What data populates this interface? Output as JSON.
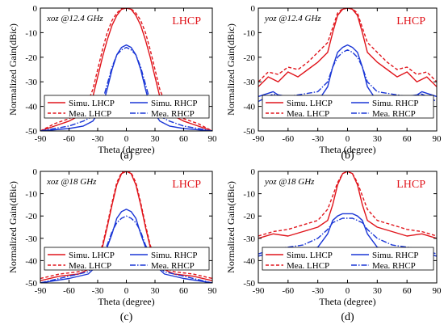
{
  "chart_data": [
    {
      "type": "line",
      "caption": "(a)",
      "annotation": "xoz @12.4 GHz",
      "polarization_label": "LHCP",
      "xlabel": "Theta (degree)",
      "ylabel": "Normalized Gain(dBic)",
      "xlim": [
        -90,
        90
      ],
      "ylim": [
        -50,
        0
      ],
      "xticks": [
        -90,
        -60,
        -30,
        0,
        30,
        60,
        90
      ],
      "yticks": [
        -50,
        -40,
        -30,
        -20,
        -10,
        0
      ],
      "grid": false,
      "legend_position": "bottom",
      "colors": {
        "lhcp": "#e0141b",
        "rhcp": "#1a36d6"
      },
      "series": [
        {
          "name": "Simu. LHCP",
          "style": "solid",
          "color": "#e0141b",
          "x": [
            -90,
            -75,
            -60,
            -50,
            -45,
            -40,
            -35,
            -30,
            -25,
            -20,
            -15,
            -10,
            -5,
            0,
            5,
            10,
            15,
            20,
            25,
            30,
            35,
            40,
            45,
            50,
            60,
            75,
            90
          ],
          "y": [
            -50,
            -48,
            -46,
            -44,
            -42,
            -40,
            -36,
            -28,
            -20,
            -13,
            -7,
            -3,
            -0.5,
            0,
            -0.5,
            -3,
            -7,
            -13,
            -20,
            -28,
            -36,
            -40,
            -42,
            -44,
            -46,
            -48,
            -50
          ]
        },
        {
          "name": "Simu. RHCP",
          "style": "solid",
          "color": "#1a36d6",
          "x": [
            -90,
            -60,
            -45,
            -35,
            -25,
            -20,
            -15,
            -10,
            -5,
            0,
            5,
            10,
            15,
            20,
            25,
            35,
            45,
            60,
            90
          ],
          "y": [
            -50,
            -49,
            -48,
            -46,
            -40,
            -33,
            -25,
            -19,
            -16,
            -15,
            -16,
            -19,
            -25,
            -33,
            -40,
            -46,
            -48,
            -49,
            -50
          ]
        },
        {
          "name": "Mea. LHCP",
          "style": "dashed",
          "color": "#e0141b",
          "x": [
            -90,
            -75,
            -60,
            -45,
            -40,
            -35,
            -30,
            -25,
            -20,
            -15,
            -10,
            -5,
            0,
            5,
            10,
            15,
            20,
            25,
            30,
            35,
            40,
            45,
            60,
            75,
            90
          ],
          "y": [
            -50,
            -47,
            -45,
            -42,
            -38,
            -33,
            -25,
            -17,
            -10,
            -5,
            -2,
            -0.3,
            0,
            -0.3,
            -2,
            -5,
            -10,
            -17,
            -25,
            -33,
            -38,
            -42,
            -45,
            -47,
            -50
          ]
        },
        {
          "name": "Mea. RHCP",
          "style": "dashdot",
          "color": "#1a36d6",
          "x": [
            -90,
            -60,
            -45,
            -35,
            -25,
            -20,
            -15,
            -10,
            -5,
            0,
            5,
            10,
            15,
            20,
            25,
            35,
            45,
            60,
            90
          ],
          "y": [
            -50,
            -48,
            -46,
            -44,
            -38,
            -31,
            -24,
            -19,
            -17,
            -16,
            -17,
            -19,
            -24,
            -31,
            -38,
            -44,
            -46,
            -48,
            -50
          ]
        }
      ]
    },
    {
      "type": "line",
      "caption": "(b)",
      "annotation": "yoz @12.4 GHz",
      "polarization_label": "LHCP",
      "xlabel": "Theta (degree)",
      "ylabel": "Normalized Gain(dBic)",
      "xlim": [
        -90,
        90
      ],
      "ylim": [
        -50,
        0
      ],
      "xticks": [
        -90,
        -60,
        -30,
        0,
        30,
        60,
        90
      ],
      "yticks": [
        -50,
        -40,
        -30,
        -20,
        -10,
        0
      ],
      "grid": false,
      "legend_position": "bottom",
      "colors": {
        "lhcp": "#e0141b",
        "rhcp": "#1a36d6"
      },
      "series": [
        {
          "name": "Simu. LHCP",
          "style": "solid",
          "color": "#e0141b",
          "x": [
            -90,
            -80,
            -70,
            -60,
            -50,
            -40,
            -30,
            -20,
            -15,
            -10,
            -5,
            0,
            5,
            10,
            15,
            20,
            30,
            40,
            50,
            60,
            70,
            80,
            90
          ],
          "y": [
            -32,
            -28,
            -30,
            -26,
            -28,
            -25,
            -22,
            -18,
            -10,
            -3,
            -0.5,
            0,
            -0.5,
            -3,
            -10,
            -18,
            -22,
            -25,
            -28,
            -26,
            -30,
            -28,
            -32
          ]
        },
        {
          "name": "Simu. RHCP",
          "style": "solid",
          "color": "#1a36d6",
          "x": [
            -90,
            -75,
            -60,
            -45,
            -30,
            -20,
            -15,
            -10,
            -5,
            0,
            5,
            10,
            15,
            20,
            30,
            45,
            60,
            75,
            90
          ],
          "y": [
            -36,
            -34,
            -38,
            -36,
            -38,
            -32,
            -24,
            -18,
            -16,
            -15,
            -16,
            -18,
            -24,
            -32,
            -38,
            -36,
            -38,
            -34,
            -36
          ]
        },
        {
          "name": "Mea. LHCP",
          "style": "dashed",
          "color": "#e0141b",
          "x": [
            -90,
            -80,
            -70,
            -60,
            -50,
            -40,
            -30,
            -20,
            -15,
            -10,
            -5,
            0,
            5,
            10,
            15,
            20,
            30,
            40,
            50,
            60,
            70,
            80,
            90
          ],
          "y": [
            -30,
            -26,
            -27,
            -24,
            -25,
            -22,
            -18,
            -14,
            -8,
            -2,
            -0.3,
            0,
            -0.3,
            -2,
            -8,
            -14,
            -18,
            -22,
            -25,
            -24,
            -27,
            -26,
            -30
          ]
        },
        {
          "name": "Mea. RHCP",
          "style": "dashdot",
          "color": "#1a36d6",
          "x": [
            -90,
            -75,
            -60,
            -45,
            -30,
            -20,
            -15,
            -10,
            -5,
            0,
            5,
            10,
            15,
            20,
            30,
            45,
            60,
            75,
            90
          ],
          "y": [
            -38,
            -35,
            -36,
            -35,
            -34,
            -30,
            -24,
            -20,
            -18,
            -17,
            -18,
            -20,
            -24,
            -30,
            -34,
            -35,
            -36,
            -35,
            -38
          ]
        }
      ]
    },
    {
      "type": "line",
      "caption": "(c)",
      "annotation": "xoz @18 GHz",
      "polarization_label": "LHCP",
      "xlabel": "Theta (degree)",
      "ylabel": "Normalized Gain(dBic)",
      "xlim": [
        -90,
        90
      ],
      "ylim": [
        -50,
        0
      ],
      "xticks": [
        -90,
        -60,
        -30,
        0,
        30,
        60,
        90
      ],
      "yticks": [
        -50,
        -40,
        -30,
        -20,
        -10,
        0
      ],
      "grid": false,
      "legend_position": "bottom",
      "colors": {
        "lhcp": "#e0141b",
        "rhcp": "#1a36d6"
      },
      "series": [
        {
          "name": "Simu. LHCP",
          "style": "solid",
          "color": "#e0141b",
          "x": [
            -90,
            -70,
            -50,
            -40,
            -30,
            -25,
            -20,
            -15,
            -10,
            -5,
            0,
            5,
            10,
            15,
            20,
            25,
            30,
            40,
            50,
            70,
            90
          ],
          "y": [
            -49,
            -47,
            -46,
            -44,
            -40,
            -34,
            -25,
            -15,
            -6,
            -1,
            0,
            -1,
            -6,
            -15,
            -25,
            -34,
            -40,
            -44,
            -46,
            -47,
            -49
          ]
        },
        {
          "name": "Simu. RHCP",
          "style": "solid",
          "color": "#1a36d6",
          "x": [
            -90,
            -60,
            -40,
            -30,
            -20,
            -15,
            -10,
            -5,
            0,
            5,
            10,
            15,
            20,
            30,
            40,
            60,
            90
          ],
          "y": [
            -50,
            -48,
            -46,
            -42,
            -34,
            -28,
            -21,
            -18,
            -17,
            -18,
            -21,
            -28,
            -34,
            -42,
            -46,
            -48,
            -50
          ]
        },
        {
          "name": "Mea. LHCP",
          "style": "dashed",
          "color": "#e0141b",
          "x": [
            -90,
            -70,
            -50,
            -40,
            -30,
            -25,
            -20,
            -15,
            -10,
            -5,
            0,
            5,
            10,
            15,
            20,
            25,
            30,
            40,
            50,
            70,
            90
          ],
          "y": [
            -48,
            -46,
            -45,
            -43,
            -39,
            -33,
            -24,
            -14,
            -5,
            -0.5,
            0,
            -0.5,
            -5,
            -14,
            -24,
            -33,
            -39,
            -43,
            -45,
            -46,
            -48
          ]
        },
        {
          "name": "Mea. RHCP",
          "style": "dashdot",
          "color": "#1a36d6",
          "x": [
            -90,
            -60,
            -40,
            -30,
            -20,
            -15,
            -10,
            -5,
            0,
            5,
            10,
            15,
            20,
            30,
            40,
            60,
            90
          ],
          "y": [
            -50,
            -47,
            -45,
            -41,
            -33,
            -27,
            -23,
            -21,
            -20,
            -21,
            -23,
            -27,
            -33,
            -41,
            -45,
            -47,
            -50
          ]
        }
      ]
    },
    {
      "type": "line",
      "caption": "(d)",
      "annotation": "yoz @18 GHz",
      "polarization_label": "LHCP",
      "xlabel": "Theta (degree)",
      "ylabel": "Normalized Gain(dBic)",
      "xlim": [
        -90,
        90
      ],
      "ylim": [
        -50,
        0
      ],
      "xticks": [
        -90,
        -60,
        -30,
        0,
        30,
        60,
        90
      ],
      "yticks": [
        -50,
        -40,
        -30,
        -20,
        -10,
        0
      ],
      "grid": false,
      "legend_position": "bottom",
      "colors": {
        "lhcp": "#e0141b",
        "rhcp": "#1a36d6"
      },
      "series": [
        {
          "name": "Simu. LHCP",
          "style": "solid",
          "color": "#e0141b",
          "x": [
            -90,
            -75,
            -60,
            -45,
            -30,
            -20,
            -15,
            -10,
            -5,
            0,
            5,
            10,
            15,
            20,
            30,
            45,
            60,
            75,
            90
          ],
          "y": [
            -30,
            -28,
            -29,
            -27,
            -25,
            -22,
            -15,
            -6,
            -1,
            0,
            -1,
            -6,
            -15,
            -22,
            -25,
            -27,
            -29,
            -28,
            -30
          ]
        },
        {
          "name": "Simu. RHCP",
          "style": "solid",
          "color": "#1a36d6",
          "x": [
            -90,
            -75,
            -60,
            -45,
            -30,
            -20,
            -15,
            -10,
            -5,
            0,
            5,
            10,
            15,
            20,
            30,
            45,
            60,
            75,
            90
          ],
          "y": [
            -38,
            -36,
            -37,
            -36,
            -34,
            -28,
            -22,
            -20,
            -19,
            -19,
            -19,
            -20,
            -22,
            -28,
            -34,
            -36,
            -37,
            -36,
            -38
          ]
        },
        {
          "name": "Mea. LHCP",
          "style": "dashed",
          "color": "#e0141b",
          "x": [
            -90,
            -75,
            -60,
            -45,
            -30,
            -20,
            -15,
            -10,
            -5,
            0,
            5,
            10,
            15,
            20,
            30,
            45,
            60,
            75,
            90
          ],
          "y": [
            -29,
            -27,
            -26,
            -24,
            -22,
            -17,
            -11,
            -5,
            -1,
            0,
            -1,
            -5,
            -11,
            -17,
            -22,
            -24,
            -26,
            -27,
            -29
          ]
        },
        {
          "name": "Mea. RHCP",
          "style": "dashdot",
          "color": "#1a36d6",
          "x": [
            -90,
            -75,
            -60,
            -45,
            -30,
            -20,
            -15,
            -10,
            -5,
            0,
            5,
            10,
            15,
            20,
            30,
            45,
            60,
            75,
            90
          ],
          "y": [
            -37,
            -35,
            -34,
            -33,
            -30,
            -26,
            -23,
            -22,
            -21,
            -21,
            -21,
            -22,
            -23,
            -26,
            -30,
            -33,
            -34,
            -35,
            -37
          ]
        }
      ]
    }
  ]
}
